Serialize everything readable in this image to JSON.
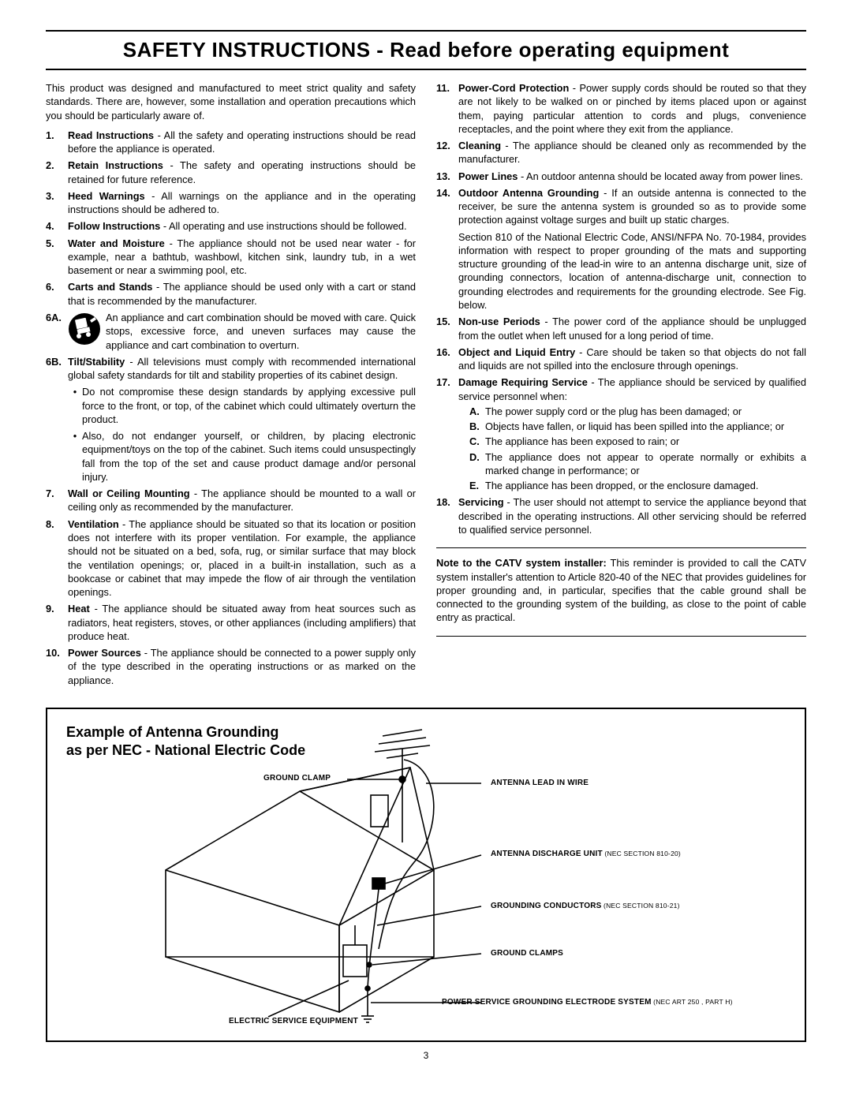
{
  "title": "SAFETY INSTRUCTIONS - Read before operating equipment",
  "intro": "This product was designed and manufactured to meet strict quality and safety standards. There are, however, some installation and operation precautions which you should be particularly aware of.",
  "left_items": [
    {
      "n": "1.",
      "lead": "Read Instructions",
      "text": " - All the safety and operating instructions should be read before the appliance is operated."
    },
    {
      "n": "2.",
      "lead": "Retain Instructions",
      "text": " - The safety and operating instructions should be retained for future reference."
    },
    {
      "n": "3.",
      "lead": "Heed Warnings",
      "text": " - All warnings on the appliance and in the operating instructions should be adhered to."
    },
    {
      "n": "4.",
      "lead": "Follow Instructions",
      "text": " - All operating and use instructions should be followed."
    },
    {
      "n": "5.",
      "lead": "Water and Moisture",
      "text": " - The appliance should not be used near water - for example, near a bathtub, washbowl, kitchen sink, laundry tub, in a wet basement or near a swimming pool, etc."
    },
    {
      "n": "6.",
      "lead": "Carts and Stands",
      "text": " - The appliance should be used only with a cart or stand that is recommended by the manufacturer."
    }
  ],
  "item_6a": {
    "n": "6A.",
    "text": "An appliance and cart combination should be moved with care. Quick stops, excessive force, and uneven surfaces may cause the appliance and cart combination to overturn."
  },
  "item_6b": {
    "n": "6B.",
    "lead": "Tilt/Stability",
    "text": " - All televisions must comply with recommended international global safety standards for tilt and stability properties of its cabinet design.",
    "subs": [
      "Do not compromise these design standards by applying excessive pull force to the front, or top, of the cabinet which could ultimately overturn the product.",
      "Also, do not endanger yourself, or children, by placing electronic equipment/toys on the top of the cabinet. Such items could unsuspectingly fall from the top of the set and cause product damage and/or personal injury."
    ]
  },
  "left_items_2": [
    {
      "n": "7.",
      "lead": "Wall or Ceiling Mounting",
      "text": " - The appliance should be mounted to a wall or ceiling only as recommended by the manufacturer."
    },
    {
      "n": "8.",
      "lead": "Ventilation",
      "text": " - The appliance should be situated so that its location or position does not interfere with its proper ventilation. For example, the appliance should not be situated on a bed, sofa, rug, or similar surface that may block the ventilation openings; or, placed in a built-in installation, such as a bookcase or cabinet that may impede the flow of air through the ventilation openings."
    },
    {
      "n": "9.",
      "lead": "Heat",
      "text": " - The appliance should be situated away from heat sources such as radiators, heat registers, stoves, or other appliances (including amplifiers) that produce heat."
    },
    {
      "n": "10.",
      "lead": "Power Sources",
      "text": " - The appliance should be connected to a power supply only of the type described in the operating instructions or as marked on the appliance."
    }
  ],
  "right_items": [
    {
      "n": "11.",
      "lead": "Power-Cord Protection",
      "text": " - Power supply cords should be routed so that they are not likely to be walked on or pinched by items placed upon or against them, paying particular attention to cords and plugs, convenience receptacles, and the point where they exit from the appliance."
    },
    {
      "n": "12.",
      "lead": "Cleaning",
      "text": " - The appliance should be cleaned only as recommended by the manufacturer."
    },
    {
      "n": "13.",
      "lead": "Power Lines",
      "text": " - An outdoor antenna should be located away from power lines."
    },
    {
      "n": "14.",
      "lead": "Outdoor Antenna Grounding",
      "text": " - If an outside antenna is connected to the receiver, be sure the antenna system is grounded so as to provide some protection against voltage surges and built up static charges.",
      "extra": "Section 810 of the National Electric Code, ANSI/NFPA No. 70-1984, provides information with respect to proper grounding of the mats and supporting structure grounding of the lead-in wire to an antenna discharge unit, size of grounding connectors, location of antenna-discharge unit, connection to grounding electrodes and requirements for the grounding electrode. See Fig. below."
    },
    {
      "n": "15.",
      "lead": "Non-use Periods",
      "text": " - The power cord of the appliance should be unplugged from the outlet when left unused for a long period of time."
    },
    {
      "n": "16.",
      "lead": "Object and Liquid Entry",
      "text": " - Care should be taken so that objects do not fall and liquids are not spilled into the enclosure through openings."
    }
  ],
  "item_17": {
    "n": "17.",
    "lead": "Damage Requiring Service",
    "text": " - The appliance should be serviced by qualified service personnel when:",
    "subs": [
      {
        "l": "A.",
        "t": "The power supply cord or the plug has been damaged; or"
      },
      {
        "l": "B.",
        "t": "Objects have fallen, or liquid has been spilled into the appliance; or"
      },
      {
        "l": "C.",
        "t": "The appliance has been exposed to rain; or"
      },
      {
        "l": "D.",
        "t": "The appliance does not appear to operate normally or exhibits a marked change in performance; or"
      },
      {
        "l": "E.",
        "t": "The appliance has been dropped, or the enclosure damaged."
      }
    ]
  },
  "item_18": {
    "n": "18.",
    "lead": "Servicing",
    "text": " - The user should not attempt to service the appliance beyond that described in the operating instructions. All other servicing should be referred to qualified service personnel."
  },
  "catv_note": {
    "lead": "Note to the CATV system installer:",
    "text": " This reminder is provided to call the CATV system installer's attention to Article 820-40 of the NEC that provides guidelines for proper grounding and, in particular, specifies that the cable ground shall be connected to the grounding system of the building, as close to the point of cable entry as practical."
  },
  "figure": {
    "title_line1": "Example of Antenna Grounding",
    "title_line2": "as per NEC - National Electric Code",
    "labels": {
      "ground_clamp": "GROUND CLAMP",
      "antenna_lead": "ANTENNA LEAD IN WIRE",
      "discharge_unit": "ANTENNA DISCHARGE UNIT",
      "discharge_unit_nec": " (NEC SECTION 810-20)",
      "grounding_conductors": "GROUNDING CONDUCTORS",
      "grounding_conductors_nec": " (NEC SECTION 810-21)",
      "ground_clamps": "GROUND CLAMPS",
      "electric_service": "ELECTRIC SERVICE EQUIPMENT",
      "power_service": "POWER SERVICE GROUNDING ELECTRODE SYSTEM",
      "power_service_nec": " (NEC ART 250 , PART H)"
    }
  },
  "page_number": "3"
}
